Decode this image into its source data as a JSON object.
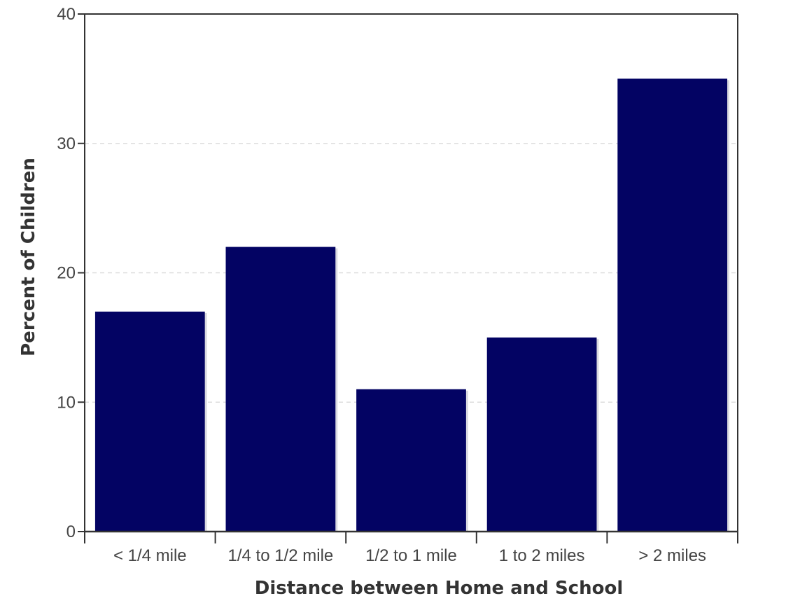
{
  "chart_data": {
    "type": "bar",
    "title": "",
    "xlabel": "Distance between Home and School",
    "ylabel": "Percent of Children",
    "categories": [
      "< 1/4 mile",
      "1/4 to 1/2 mile",
      "1/2 to 1 mile",
      "1 to 2 miles",
      "> 2 miles"
    ],
    "values": [
      17,
      22,
      11,
      15,
      35
    ],
    "ylim": [
      0,
      40
    ],
    "yticks": [
      0,
      10,
      20,
      30,
      40
    ],
    "grid": "horizontal dashed",
    "legend": "none",
    "colors": {
      "bar": "#030363",
      "bar_shadow": "#d9d9e0",
      "axis": "#333333",
      "grid": "#dddddd"
    }
  }
}
